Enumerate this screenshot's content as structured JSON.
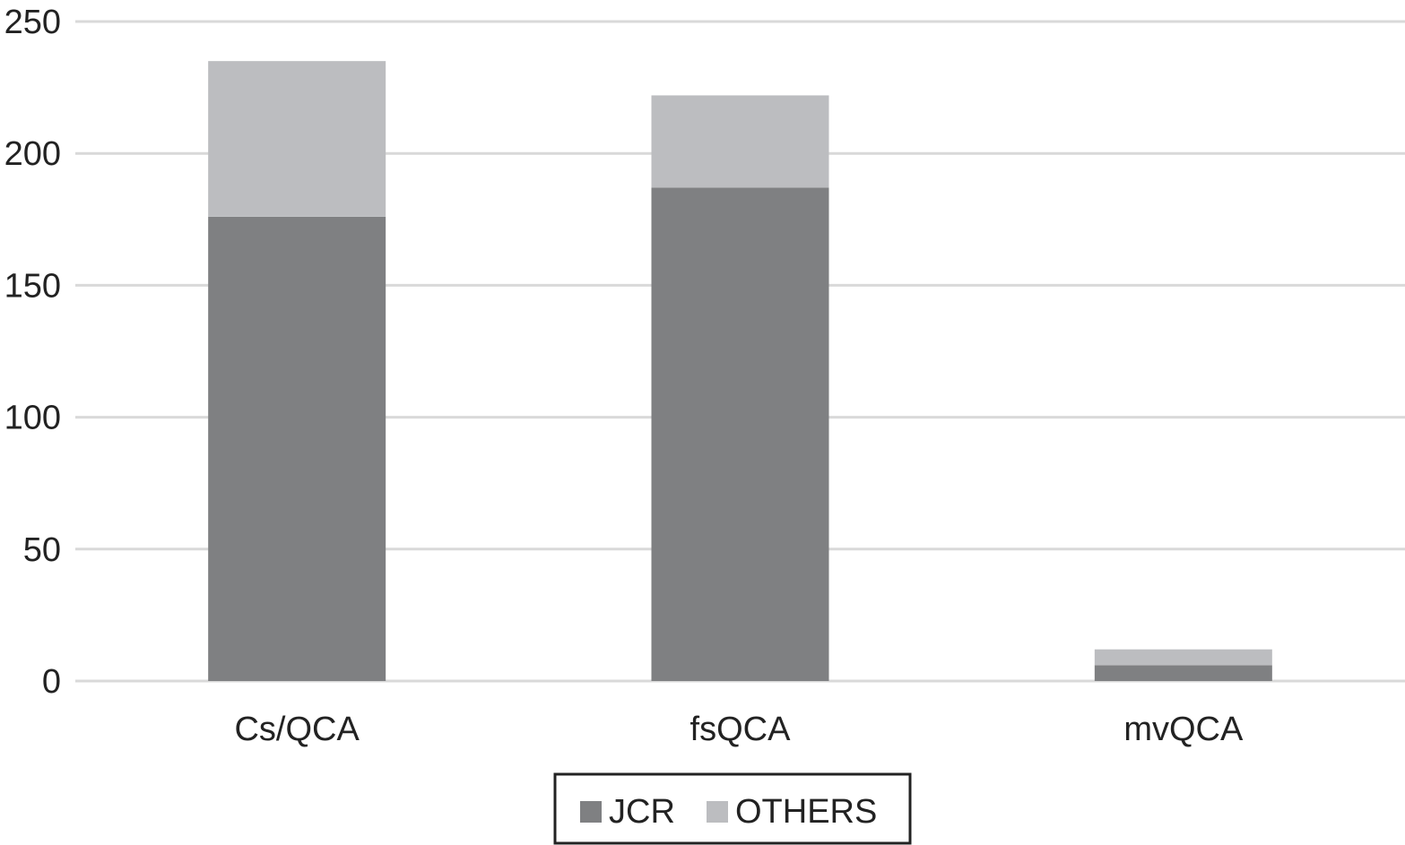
{
  "chart_data": {
    "type": "bar",
    "stacked": true,
    "title": "",
    "xlabel": "",
    "ylabel": "",
    "categories": [
      "Cs/QCA",
      "fsQCA",
      "mvQCA"
    ],
    "series": [
      {
        "name": "JCR",
        "values": [
          176,
          187,
          6
        ],
        "color": "#7f8082"
      },
      {
        "name": "OTHERS",
        "values": [
          59,
          35,
          6
        ],
        "color": "#bcbdc0"
      }
    ],
    "ylim": [
      0,
      250
    ],
    "yticks": [
      0,
      50,
      100,
      150,
      200,
      250
    ],
    "grid": true,
    "gridColor": "#d9d9d9",
    "legend": "bottom-center"
  }
}
